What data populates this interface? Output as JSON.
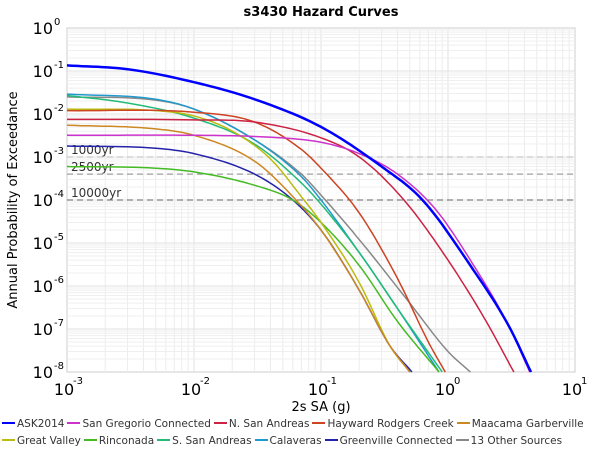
{
  "chart_data": {
    "type": "line",
    "title": "s3430 Hazard Curves",
    "xlabel": "2s SA (g)",
    "ylabel": "Annual Probability of Exceedance",
    "xscale": "log",
    "yscale": "log",
    "xlim": [
      0.001,
      10
    ],
    "ylim": [
      1e-08,
      1
    ],
    "grid": true,
    "legend_position": "bottom",
    "x_ticks": [
      {
        "base": "10",
        "exp": "-3",
        "value": 0.001
      },
      {
        "base": "10",
        "exp": "-2",
        "value": 0.01
      },
      {
        "base": "10",
        "exp": "-1",
        "value": 0.1
      },
      {
        "base": "10",
        "exp": "0",
        "value": 1
      },
      {
        "base": "10",
        "exp": "1",
        "value": 10
      }
    ],
    "y_ticks": [
      {
        "base": "10",
        "exp": "0",
        "value": 1
      },
      {
        "base": "10",
        "exp": "-1",
        "value": 0.1
      },
      {
        "base": "10",
        "exp": "-2",
        "value": 0.01
      },
      {
        "base": "10",
        "exp": "-3",
        "value": 0.001
      },
      {
        "base": "10",
        "exp": "-4",
        "value": 0.0001
      },
      {
        "base": "10",
        "exp": "-5",
        "value": 1e-05
      },
      {
        "base": "10",
        "exp": "-6",
        "value": 1e-06
      },
      {
        "base": "10",
        "exp": "-7",
        "value": 1e-07
      },
      {
        "base": "10",
        "exp": "-8",
        "value": 1e-08
      }
    ],
    "reference_lines": [
      {
        "label": "1000yr",
        "value": 0.001
      },
      {
        "label": "2500yr",
        "value": 0.0004
      },
      {
        "label": "10000yr",
        "value": 0.0001
      }
    ],
    "series": [
      {
        "name": "ASK2014",
        "color": "#0000ff",
        "width": 2.5,
        "x": [
          0.001,
          0.003,
          0.01,
          0.03,
          0.1,
          0.3,
          0.63,
          1.5,
          3,
          4.5
        ],
        "y": [
          0.135,
          0.11,
          0.055,
          0.022,
          0.005,
          0.0006,
          0.0001,
          3e-06,
          1.2e-07,
          1e-08
        ]
      },
      {
        "name": "San Gregorio Connected",
        "color": "#cc33cc",
        "width": 1.5,
        "x": [
          0.001,
          0.01,
          0.03,
          0.1,
          0.2,
          0.4,
          0.8,
          1.5,
          3,
          4.4
        ],
        "y": [
          0.0032,
          0.0032,
          0.003,
          0.0022,
          0.0012,
          0.0004,
          6e-05,
          4e-06,
          1.2e-07,
          1e-08
        ]
      },
      {
        "name": "N. San Andreas",
        "color": "#cc2244",
        "width": 1.5,
        "x": [
          0.001,
          0.01,
          0.03,
          0.1,
          0.2,
          0.45,
          1,
          2,
          3.3
        ],
        "y": [
          0.0075,
          0.0073,
          0.0065,
          0.0028,
          0.001,
          0.0001,
          4e-06,
          1.5e-07,
          1e-08
        ]
      },
      {
        "name": "Hayward Rodgers Creek",
        "color": "#cc4422",
        "width": 1.5,
        "x": [
          0.001,
          0.01,
          0.03,
          0.07,
          0.1,
          0.2,
          0.4,
          0.7,
          0.95
        ],
        "y": [
          0.012,
          0.011,
          0.0065,
          0.0015,
          0.00055,
          5e-05,
          1.5e-06,
          5e-08,
          1e-08
        ]
      },
      {
        "name": "Maacama Garberville",
        "color": "#cc8822",
        "width": 1.5,
        "x": [
          0.001,
          0.005,
          0.01,
          0.03,
          0.06,
          0.1,
          0.2,
          0.35,
          0.5
        ],
        "y": [
          0.0055,
          0.0045,
          0.0032,
          0.0008,
          0.00012,
          2e-05,
          8e-07,
          4e-08,
          1e-08
        ]
      },
      {
        "name": "Great Valley",
        "color": "#bbbb11",
        "width": 1.5,
        "x": [
          0.001,
          0.005,
          0.01,
          0.02,
          0.04,
          0.07,
          0.1,
          0.2,
          0.35,
          0.5
        ],
        "y": [
          0.013,
          0.012,
          0.009,
          0.004,
          0.0009,
          0.00012,
          3e-05,
          1.2e-06,
          4e-08,
          1e-08
        ]
      },
      {
        "name": "Rinconada",
        "color": "#44bb22",
        "width": 1.5,
        "x": [
          0.001,
          0.005,
          0.01,
          0.03,
          0.06,
          0.1,
          0.2,
          0.4,
          0.85
        ],
        "y": [
          0.0006,
          0.00055,
          0.00045,
          0.00022,
          0.0001,
          3e-05,
          3e-06,
          1.5e-07,
          1e-08
        ]
      },
      {
        "name": "S. San Andreas",
        "color": "#22bb77",
        "width": 1.5,
        "x": [
          0.001,
          0.003,
          0.01,
          0.03,
          0.07,
          0.1,
          0.2,
          0.4,
          0.9
        ],
        "y": [
          0.027,
          0.018,
          0.008,
          0.002,
          0.00025,
          8e-05,
          6e-06,
          3e-07,
          1e-08
        ]
      },
      {
        "name": "Calaveras",
        "color": "#2299cc",
        "width": 1.5,
        "x": [
          0.001,
          0.005,
          0.01,
          0.03,
          0.07,
          0.1,
          0.2,
          0.4,
          0.85
        ],
        "y": [
          0.029,
          0.022,
          0.013,
          0.0025,
          0.00035,
          0.0001,
          6e-06,
          3e-07,
          1e-08
        ]
      },
      {
        "name": "Greenville Connected",
        "color": "#2222aa",
        "width": 1.5,
        "x": [
          0.001,
          0.005,
          0.01,
          0.03,
          0.06,
          0.1,
          0.2,
          0.35,
          0.52
        ],
        "y": [
          0.0018,
          0.0016,
          0.0012,
          0.0004,
          0.0001,
          2e-05,
          8e-07,
          4e-08,
          1e-08
        ]
      },
      {
        "name": "13 Other Sources",
        "color": "#888888",
        "width": 1.5,
        "x": [
          0.001,
          0.005,
          0.01,
          0.03,
          0.07,
          0.1,
          0.2,
          0.5,
          1,
          1.5
        ],
        "y": [
          0.025,
          0.021,
          0.013,
          0.0025,
          0.0004,
          0.00013,
          1.2e-05,
          4e-07,
          3e-08,
          1e-08
        ]
      }
    ]
  }
}
